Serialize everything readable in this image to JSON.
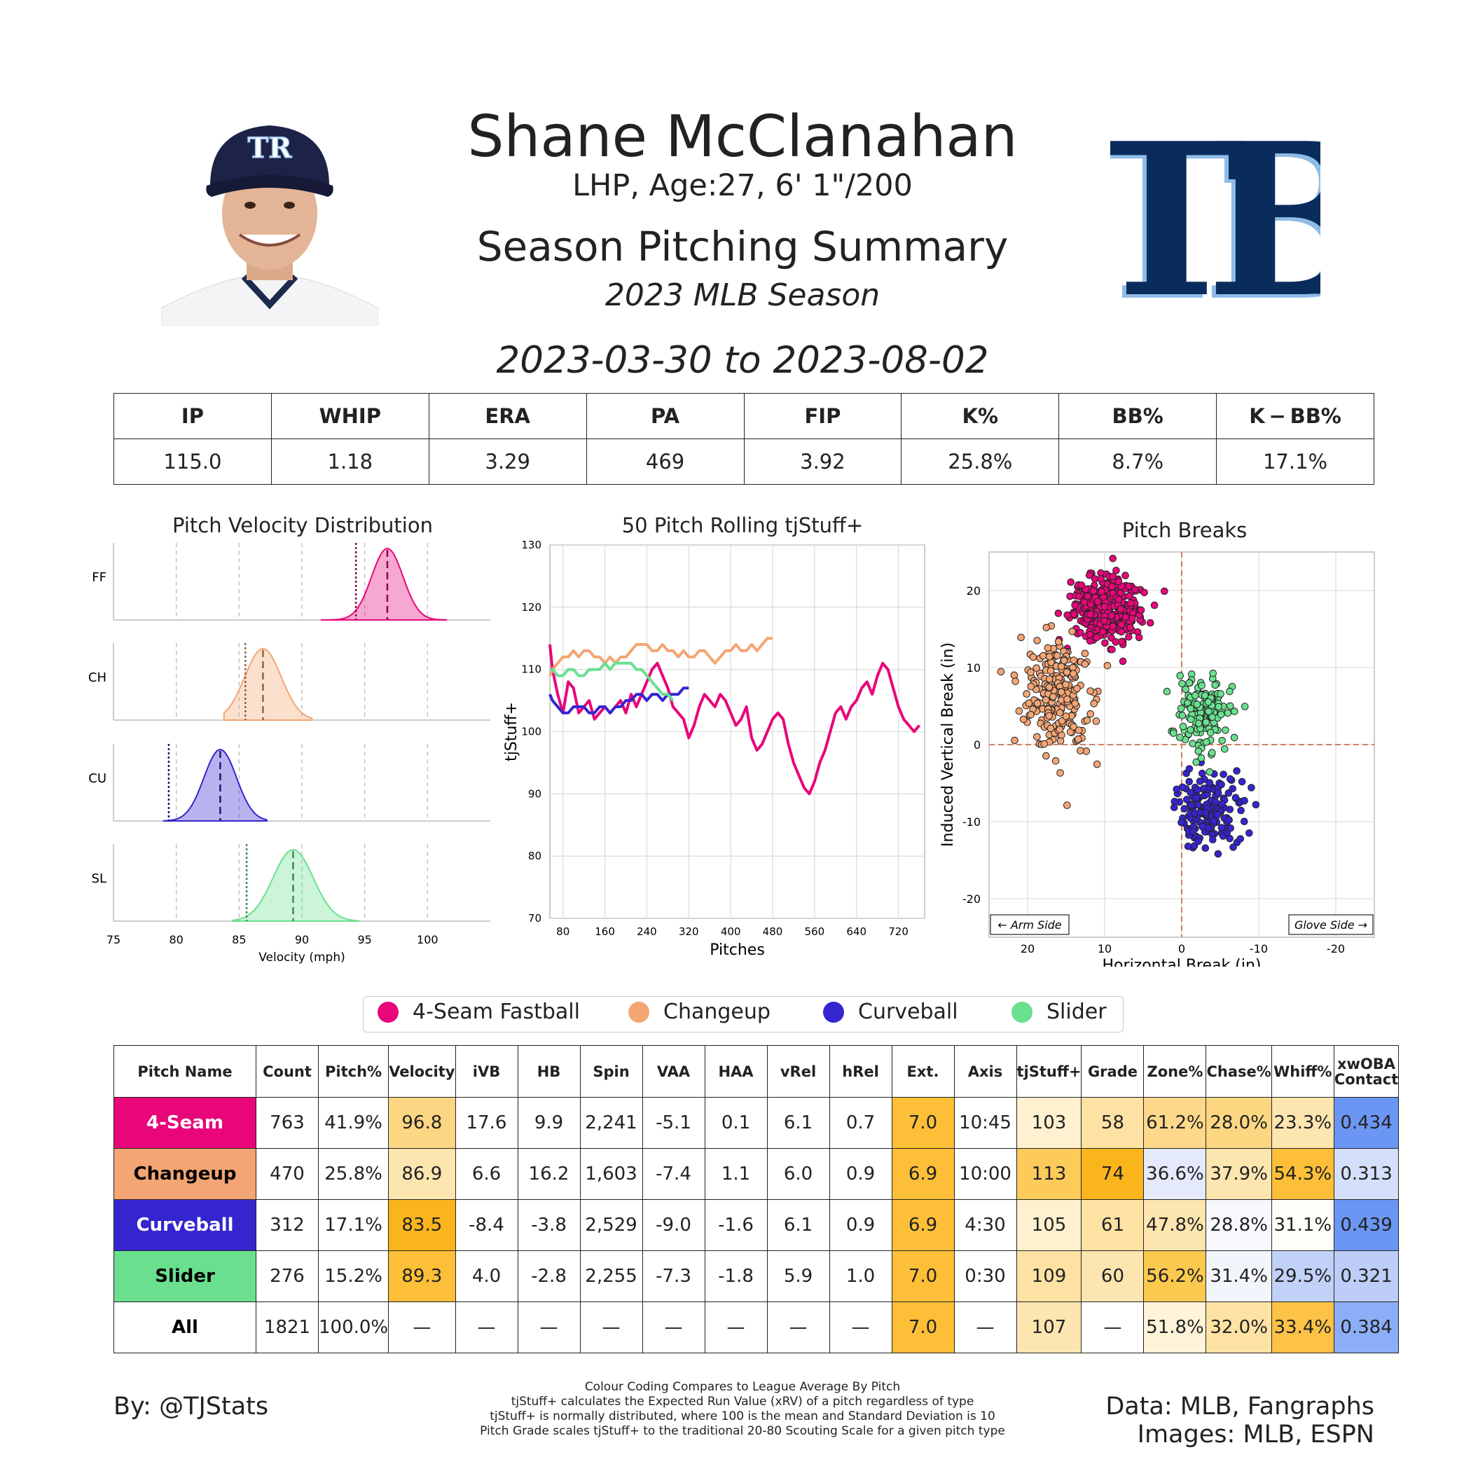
{
  "header": {
    "player_name": "Shane McClanahan",
    "bio": "LHP, Age:27, 6' 1\"/200",
    "title": "Season Pitching Summary",
    "season": "2023 MLB Season",
    "date_range": "2023-03-30 to 2023-08-02",
    "logo_text": "TB",
    "logo_tm": "™",
    "cap_logo_text": "TR"
  },
  "colors": {
    "ff": "#e8067a",
    "ch": "#f4a574",
    "cu": "#3525cf",
    "sl": "#6ae08f",
    "navy": "#092c5c",
    "lightblue": "#8fbce6"
  },
  "season_stats": {
    "headers": [
      "IP",
      "WHIP",
      "ERA",
      "PA",
      "FIP",
      "K%",
      "BB%",
      "K − BB%"
    ],
    "values": [
      "115.0",
      "1.18",
      "3.29",
      "469",
      "3.92",
      "25.8%",
      "8.7%",
      "17.1%"
    ]
  },
  "chart_data": [
    {
      "type": "area",
      "title": "Pitch Velocity Distribution",
      "xlabel": "Velocity (mph)",
      "xlim": [
        75,
        105
      ],
      "xticks": [
        75,
        80,
        85,
        90,
        95,
        100
      ],
      "series": [
        {
          "name": "FF",
          "mean": 96.8,
          "sd": 1.25,
          "league_avg": 94.3,
          "range": [
            91.5,
            101.5
          ]
        },
        {
          "name": "CH",
          "mean": 86.9,
          "sd": 1.45,
          "league_avg": 85.5,
          "range": [
            83.8,
            90.8
          ]
        },
        {
          "name": "CU",
          "mean": 83.5,
          "sd": 1.3,
          "league_avg": 79.4,
          "range": [
            79.0,
            87.2
          ]
        },
        {
          "name": "SL",
          "mean": 89.3,
          "sd": 1.6,
          "league_avg": 85.6,
          "range": [
            84.5,
            94.5
          ]
        }
      ]
    },
    {
      "type": "line",
      "title": "50 Pitch Rolling tjStuff+",
      "xlabel": "Pitches",
      "ylabel": "tjStuff+",
      "xlim": [
        55,
        770
      ],
      "ylim": [
        70,
        130
      ],
      "xticks": [
        80,
        160,
        240,
        320,
        400,
        480,
        560,
        640,
        720
      ],
      "yticks": [
        70,
        80,
        90,
        100,
        110,
        120,
        130
      ],
      "series": [
        {
          "name": "4-Seam Fastball",
          "x": [
            50,
            60,
            70,
            80,
            90,
            100,
            110,
            120,
            130,
            140,
            150,
            160,
            170,
            180,
            190,
            200,
            210,
            220,
            230,
            240,
            250,
            260,
            270,
            280,
            290,
            300,
            310,
            320,
            330,
            340,
            350,
            360,
            370,
            380,
            390,
            400,
            410,
            420,
            430,
            440,
            450,
            460,
            470,
            480,
            490,
            500,
            510,
            520,
            530,
            540,
            550,
            560,
            570,
            580,
            590,
            600,
            610,
            620,
            630,
            640,
            650,
            660,
            670,
            680,
            690,
            700,
            710,
            720,
            730,
            740,
            750,
            760
          ],
          "y": [
            114,
            110,
            106,
            103,
            108,
            107,
            103,
            104,
            105,
            102,
            103,
            104,
            103,
            104,
            105,
            103,
            106,
            104,
            106,
            108,
            110,
            111,
            109,
            107,
            104,
            103,
            102,
            99,
            101,
            104,
            106,
            105,
            104,
            106,
            105,
            103,
            101,
            102,
            104,
            99,
            97,
            98,
            100,
            102,
            103,
            102,
            98,
            95,
            93,
            91,
            90,
            92,
            95,
            97,
            100,
            103,
            104,
            102,
            104,
            105,
            107,
            108,
            106,
            109,
            111,
            110,
            107,
            104,
            102,
            101,
            100,
            101
          ]
        },
        {
          "name": "Changeup",
          "x": [
            50,
            60,
            70,
            80,
            90,
            100,
            110,
            120,
            130,
            140,
            150,
            160,
            170,
            180,
            190,
            200,
            210,
            220,
            230,
            240,
            250,
            260,
            270,
            280,
            290,
            300,
            310,
            320,
            330,
            340,
            350,
            360,
            370,
            380,
            390,
            400,
            410,
            420,
            430,
            440,
            450,
            460,
            470,
            480
          ],
          "y": [
            109,
            110,
            111,
            112,
            112,
            113,
            112,
            113,
            113,
            112,
            112,
            111,
            112,
            111,
            112,
            112,
            113,
            114,
            114,
            114,
            113,
            113,
            114,
            113,
            113,
            112,
            113,
            112,
            112,
            113,
            113,
            112,
            111,
            112,
            113,
            113,
            114,
            113,
            113,
            114,
            113,
            114,
            115,
            115
          ]
        },
        {
          "name": "Curveball",
          "x": [
            50,
            60,
            70,
            80,
            90,
            100,
            110,
            120,
            130,
            140,
            150,
            160,
            170,
            180,
            190,
            200,
            210,
            220,
            230,
            240,
            250,
            260,
            270,
            280,
            290,
            300,
            310,
            320
          ],
          "y": [
            106,
            105,
            104,
            103,
            103,
            104,
            104,
            104,
            103,
            103,
            104,
            104,
            103,
            104,
            104,
            105,
            105,
            106,
            106,
            105,
            106,
            106,
            105,
            106,
            106,
            106,
            107,
            107
          ]
        },
        {
          "name": "Slider",
          "x": [
            50,
            60,
            70,
            80,
            90,
            100,
            110,
            120,
            130,
            140,
            150,
            160,
            170,
            180,
            190,
            200,
            210,
            220,
            230,
            240,
            250,
            260,
            270,
            280,
            290
          ],
          "y": [
            110,
            110,
            109,
            109,
            110,
            110,
            109,
            109,
            110,
            110,
            110,
            111,
            110,
            111,
            111,
            111,
            111,
            110,
            110,
            109,
            108,
            107,
            106,
            106,
            105
          ]
        }
      ]
    },
    {
      "type": "scatter",
      "title": "Pitch Breaks",
      "xlabel": "Horizontal Break (in)",
      "ylabel": "Induced Vertical Break (in)",
      "xlim": [
        25,
        -25
      ],
      "ylim": [
        -25,
        25
      ],
      "xticks": [
        20,
        10,
        0,
        -10,
        -20
      ],
      "yticks": [
        20,
        10,
        0,
        -10,
        -20
      ],
      "annotations": [
        "← Arm Side",
        "Glove Side →"
      ],
      "series": [
        {
          "name": "4-Seam Fastball",
          "center_hb": 9.9,
          "center_ivb": 17.6,
          "spread_hb": 2.2,
          "spread_ivb": 2.0,
          "count": 763
        },
        {
          "name": "Changeup",
          "center_hb": 16.2,
          "center_ivb": 6.6,
          "spread_hb": 2.3,
          "spread_ivb": 3.6,
          "count": 470
        },
        {
          "name": "Curveball",
          "center_hb": -3.8,
          "center_ivb": -8.4,
          "spread_hb": 2.0,
          "spread_ivb": 2.6,
          "count": 312
        },
        {
          "name": "Slider",
          "center_hb": -2.8,
          "center_ivb": 4.0,
          "spread_hb": 1.8,
          "spread_ivb": 2.4,
          "count": 276
        }
      ]
    }
  ],
  "legend": [
    {
      "label": "4-Seam Fastball",
      "color": "#e8067a"
    },
    {
      "label": "Changeup",
      "color": "#f4a574"
    },
    {
      "label": "Curveball",
      "color": "#3525cf"
    },
    {
      "label": "Slider",
      "color": "#6ae08f"
    }
  ],
  "pitch_table": {
    "headers": [
      "Pitch Name",
      "Count",
      "Pitch%",
      "Velocity",
      "iVB",
      "HB",
      "Spin",
      "VAA",
      "HAA",
      "vRel",
      "hRel",
      "Ext.",
      "Axis",
      "tjStuff+",
      "Grade",
      "Zone%",
      "Chase%",
      "Whiff%",
      "xwOBA Contact"
    ],
    "rows": [
      {
        "cells": [
          "4-Seam",
          "763",
          "41.9%",
          "96.8",
          "17.6",
          "9.9",
          "2,241",
          "-5.1",
          "0.1",
          "6.1",
          "0.7",
          "7.0",
          "10:45",
          "103",
          "58",
          "61.2%",
          "28.0%",
          "23.3%",
          "0.434"
        ],
        "bg": [
          "#e8067a",
          "#ffffff",
          "#ffffff",
          "#fcd682",
          "#ffffff",
          "#ffffff",
          "#ffffff",
          "#ffffff",
          "#ffffff",
          "#ffffff",
          "#ffffff",
          "#fcbf37",
          "#ffffff",
          "#fff1cf",
          "#fde2a4",
          "#fdd88a",
          "#fcd681",
          "#fde5b0",
          "#6b96f4"
        ],
        "name_fg": "#ffffff"
      },
      {
        "cells": [
          "Changeup",
          "470",
          "25.8%",
          "86.9",
          "6.6",
          "16.2",
          "1,603",
          "-7.4",
          "1.1",
          "6.0",
          "0.9",
          "6.9",
          "10:00",
          "113",
          "74",
          "36.6%",
          "37.9%",
          "54.3%",
          "0.313"
        ],
        "bg": [
          "#f4a574",
          "#ffffff",
          "#ffffff",
          "#fde5b0",
          "#ffffff",
          "#ffffff",
          "#ffffff",
          "#ffffff",
          "#ffffff",
          "#ffffff",
          "#ffffff",
          "#fcbf37",
          "#ffffff",
          "#fccb5a",
          "#fbb51c",
          "#e4e9fb",
          "#fde5b0",
          "#fcbf37",
          "#d4e0fb"
        ],
        "name_fg": "#000000"
      },
      {
        "cells": [
          "Curveball",
          "312",
          "17.1%",
          "83.5",
          "-8.4",
          "-3.8",
          "2,529",
          "-9.0",
          "-1.6",
          "6.1",
          "0.9",
          "6.9",
          "4:30",
          "105",
          "61",
          "47.8%",
          "28.8%",
          "31.1%",
          "0.439"
        ],
        "bg": [
          "#3525cf",
          "#ffffff",
          "#ffffff",
          "#fbb51c",
          "#ffffff",
          "#ffffff",
          "#ffffff",
          "#ffffff",
          "#ffffff",
          "#ffffff",
          "#ffffff",
          "#fcbf37",
          "#ffffff",
          "#fff1cf",
          "#fde2a4",
          "#fde5b0",
          "#f6f8fd",
          "#fefdf8",
          "#6b96f4"
        ],
        "name_fg": "#ffffff"
      },
      {
        "cells": [
          "Slider",
          "276",
          "15.2%",
          "89.3",
          "4.0",
          "-2.8",
          "2,255",
          "-7.3",
          "-1.8",
          "5.9",
          "1.0",
          "7.0",
          "0:30",
          "109",
          "60",
          "56.2%",
          "31.4%",
          "29.5%",
          "0.321"
        ],
        "bg": [
          "#6ae08f",
          "#ffffff",
          "#ffffff",
          "#fcbf37",
          "#ffffff",
          "#ffffff",
          "#ffffff",
          "#ffffff",
          "#ffffff",
          "#ffffff",
          "#ffffff",
          "#fcbf37",
          "#ffffff",
          "#fde2a4",
          "#fde5b0",
          "#fcc94f",
          "#f3f5fd",
          "#c1d1f8",
          "#bdcdf8"
        ],
        "name_fg": "#000000"
      },
      {
        "cells": [
          "All",
          "1821",
          "100.0%",
          "—",
          "—",
          "—",
          "—",
          "—",
          "—",
          "—",
          "—",
          "7.0",
          "—",
          "107",
          "—",
          "51.8%",
          "32.0%",
          "33.4%",
          "0.384"
        ],
        "bg": [
          "#ffffff",
          "#ffffff",
          "#ffffff",
          "#ffffff",
          "#ffffff",
          "#ffffff",
          "#ffffff",
          "#ffffff",
          "#ffffff",
          "#ffffff",
          "#ffffff",
          "#fcbf37",
          "#ffffff",
          "#fde5b0",
          "#ffffff",
          "#fff3d9",
          "#fde2a4",
          "#fcc347",
          "#8caef6"
        ],
        "name_fg": "#000000"
      }
    ]
  },
  "footer": {
    "credit_left": "By: @TJStats",
    "credit_right_1": "Data: MLB, Fangraphs",
    "credit_right_2": "Images: MLB, ESPN",
    "notes": [
      "Colour Coding Compares to League Average By Pitch",
      "tjStuff+ calculates the Expected Run Value (xRV) of a pitch regardless of type",
      "tjStuff+ is normally distributed, where 100 is the mean and Standard Deviation is 10",
      "Pitch Grade scales tjStuff+ to the traditional 20-80 Scouting Scale for a given pitch type"
    ]
  }
}
